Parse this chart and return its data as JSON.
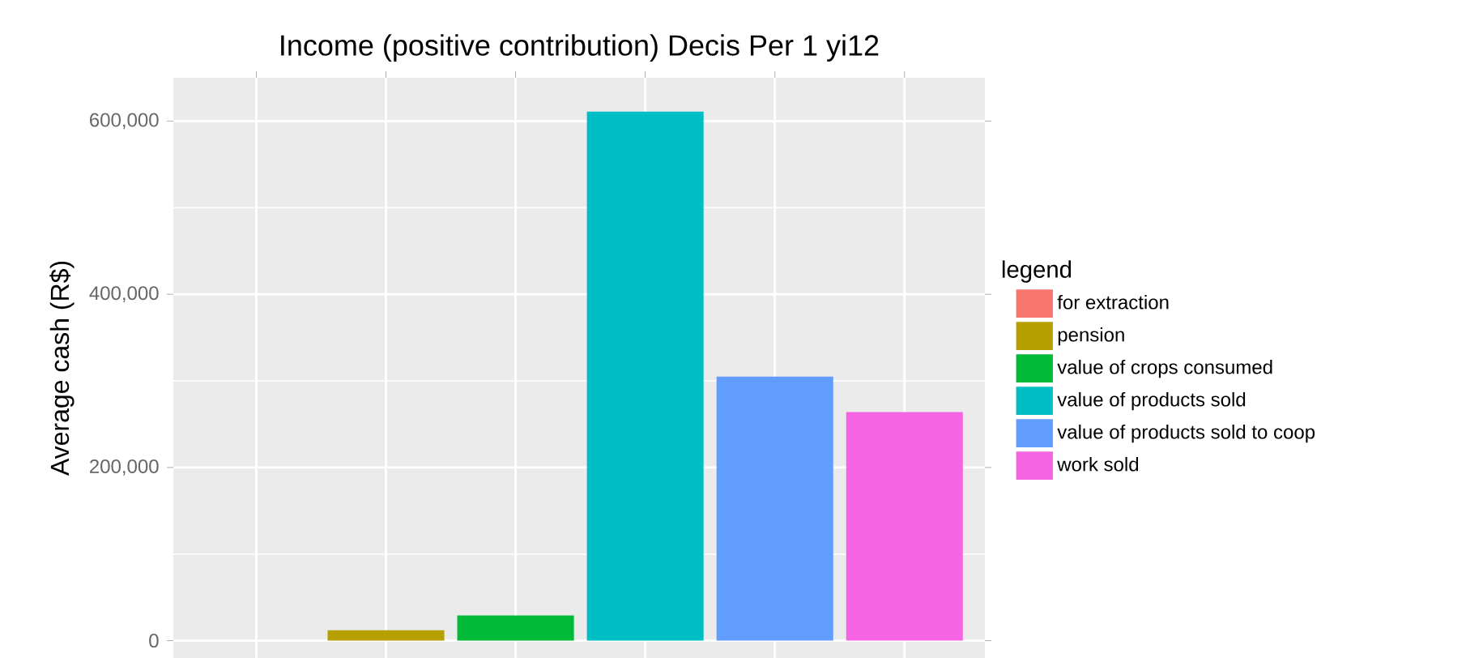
{
  "chart_data": {
    "type": "bar",
    "title": "Income (positive contribution) Decis Per 1 yi12",
    "ylabel": "Average cash (R$)",
    "legend_title": "legend",
    "categories": [
      null,
      null,
      null,
      null,
      null,
      null
    ],
    "series": [
      {
        "name": "for extraction",
        "color": "#f8766d",
        "values": [
          0,
          null,
          null,
          null,
          null,
          null
        ]
      },
      {
        "name": "pension",
        "color": "#b79f00",
        "values": [
          null,
          12000,
          null,
          null,
          null,
          null
        ]
      },
      {
        "name": "value of crops consumed",
        "color": "#00ba38",
        "values": [
          null,
          null,
          29000,
          null,
          null,
          null
        ]
      },
      {
        "name": "value of products sold",
        "color": "#00bfc4",
        "values": [
          null,
          null,
          null,
          611000,
          null,
          null
        ]
      },
      {
        "name": "value of products sold to coop",
        "color": "#619cff",
        "values": [
          null,
          null,
          null,
          null,
          305000,
          null
        ]
      },
      {
        "name": "work sold",
        "color": "#f564e3",
        "values": [
          null,
          null,
          null,
          null,
          null,
          264000
        ]
      }
    ],
    "ylim": [
      -20000,
      650000
    ],
    "yticks": [
      {
        "value": 0,
        "label": "0"
      },
      {
        "value": 200000,
        "label": "200,000"
      },
      {
        "value": 400000,
        "label": "400,000"
      },
      {
        "value": 600000,
        "label": "600,000"
      }
    ],
    "grid": true,
    "legend": "right"
  }
}
